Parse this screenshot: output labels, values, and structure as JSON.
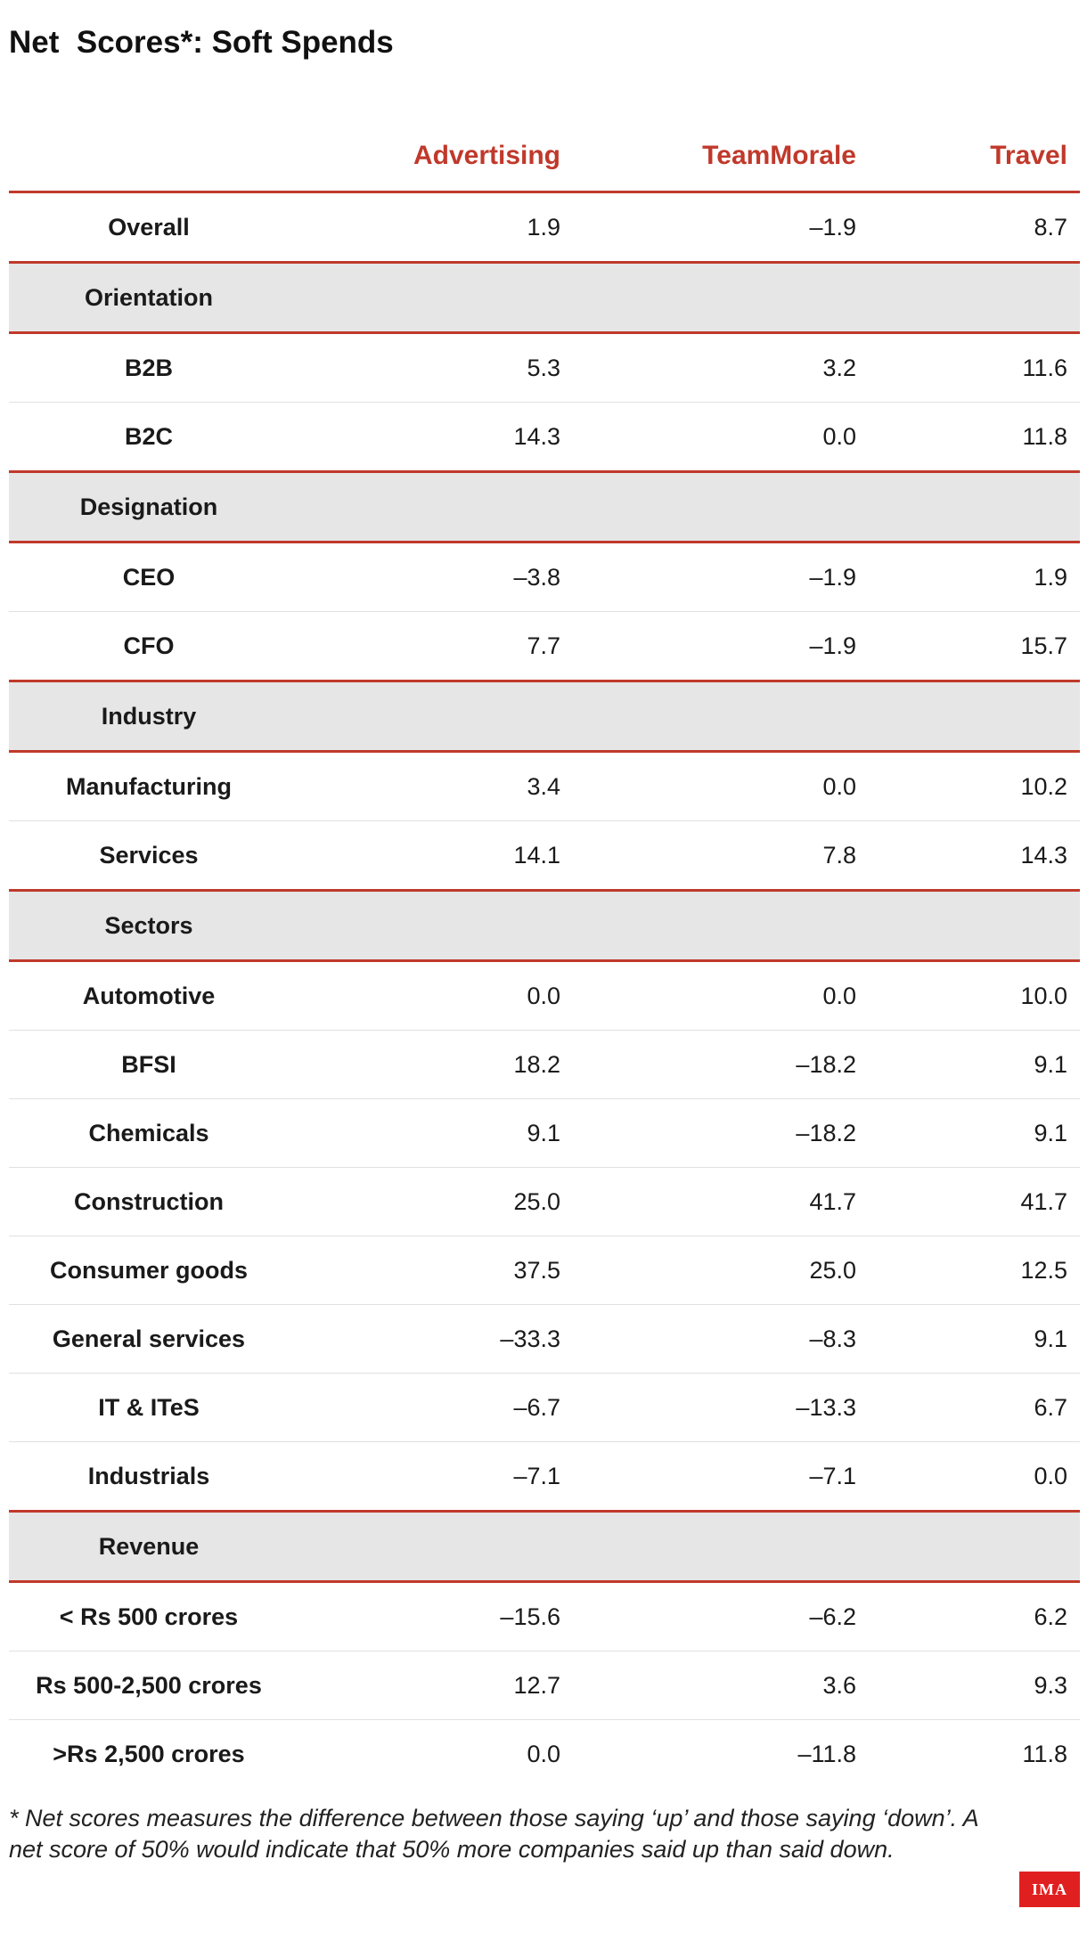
{
  "title": "Net  Scores*: Soft Spends",
  "chart_data": {
    "type": "table",
    "columns": [
      "Advertising",
      "TeamMorale",
      "Travel"
    ],
    "rows": [
      {
        "kind": "row",
        "label": "Overall",
        "values": [
          "1.9",
          "–1.9",
          "8.7"
        ]
      },
      {
        "kind": "group",
        "label": "Orientation"
      },
      {
        "kind": "row",
        "label": "B2B",
        "values": [
          "5.3",
          "3.2",
          "11.6"
        ]
      },
      {
        "kind": "row",
        "label": "B2C",
        "values": [
          "14.3",
          "0.0",
          "11.8"
        ]
      },
      {
        "kind": "group",
        "label": "Designation"
      },
      {
        "kind": "row",
        "label": "CEO",
        "values": [
          "–3.8",
          "–1.9",
          "1.9"
        ]
      },
      {
        "kind": "row",
        "label": "CFO",
        "values": [
          "7.7",
          "–1.9",
          "15.7"
        ]
      },
      {
        "kind": "group",
        "label": "Industry"
      },
      {
        "kind": "row",
        "label": "Manufacturing",
        "values": [
          "3.4",
          "0.0",
          "10.2"
        ]
      },
      {
        "kind": "row",
        "label": "Services",
        "values": [
          "14.1",
          "7.8",
          "14.3"
        ]
      },
      {
        "kind": "group",
        "label": "Sectors"
      },
      {
        "kind": "row",
        "label": "Automotive",
        "values": [
          "0.0",
          "0.0",
          "10.0"
        ]
      },
      {
        "kind": "row",
        "label": "BFSI",
        "values": [
          "18.2",
          "–18.2",
          "9.1"
        ]
      },
      {
        "kind": "row",
        "label": "Chemicals",
        "values": [
          "9.1",
          "–18.2",
          "9.1"
        ]
      },
      {
        "kind": "row",
        "label": "Construction",
        "values": [
          "25.0",
          "41.7",
          "41.7"
        ]
      },
      {
        "kind": "row",
        "label": "Consumer goods",
        "values": [
          "37.5",
          "25.0",
          "12.5"
        ]
      },
      {
        "kind": "row",
        "label": "General services",
        "values": [
          "–33.3",
          "–8.3",
          "9.1"
        ]
      },
      {
        "kind": "row",
        "label": "IT & ITeS",
        "values": [
          "–6.7",
          "–13.3",
          "6.7"
        ]
      },
      {
        "kind": "row",
        "label": "Industrials",
        "values": [
          "–7.1",
          "–7.1",
          "0.0"
        ]
      },
      {
        "kind": "group",
        "label": "Revenue"
      },
      {
        "kind": "row",
        "label": "< Rs 500 crores",
        "values": [
          "–15.6",
          "–6.2",
          "6.2"
        ]
      },
      {
        "kind": "row",
        "label": "Rs 500-2,500 crores",
        "values": [
          "12.7",
          "3.6",
          "9.3"
        ]
      },
      {
        "kind": "row",
        "label": ">Rs 2,500 crores",
        "values": [
          "0.0",
          "–11.8",
          "11.8"
        ]
      }
    ]
  },
  "footnote": "* Net scores measures the difference between those saying ‘up’ and those saying ‘down’. A net score of 50% would indicate that 50% more companies said up than said down.",
  "logo": "IMA",
  "colors": {
    "accent": "#c0392b",
    "group_background": "#e6e6e6",
    "logo_background": "#e02020"
  }
}
